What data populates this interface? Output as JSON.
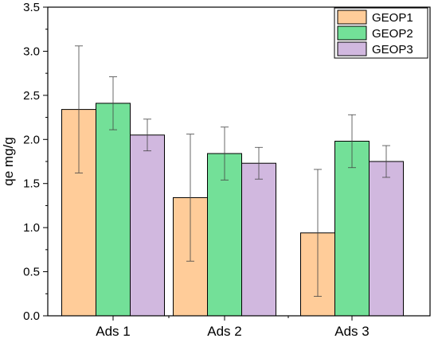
{
  "chart_data": {
    "type": "bar",
    "title": "",
    "xlabel": "",
    "ylabel": "qe mg/g",
    "categories": [
      "Ads 1",
      "Ads 2",
      "Ads 3"
    ],
    "ylim": [
      0,
      3.5
    ],
    "yticks": [
      "0.0",
      "0.5",
      "1.0",
      "1.5",
      "2.0",
      "2.5",
      "3.0",
      "3.5"
    ],
    "grid": false,
    "legend_position": "top-right",
    "error_bars": true,
    "series": [
      {
        "name": "GEOP1",
        "color": "#FFCC99",
        "values": [
          2.34,
          1.34,
          0.94
        ],
        "errors": [
          0.72,
          0.72,
          0.72
        ]
      },
      {
        "name": "GEOP2",
        "color": "#73E098",
        "values": [
          2.41,
          1.84,
          1.98
        ],
        "errors": [
          0.3,
          0.3,
          0.3
        ]
      },
      {
        "name": "GEOP3",
        "color": "#D1B8DF",
        "values": [
          2.05,
          1.73,
          1.75
        ],
        "errors": [
          0.18,
          0.18,
          0.18
        ]
      }
    ]
  }
}
